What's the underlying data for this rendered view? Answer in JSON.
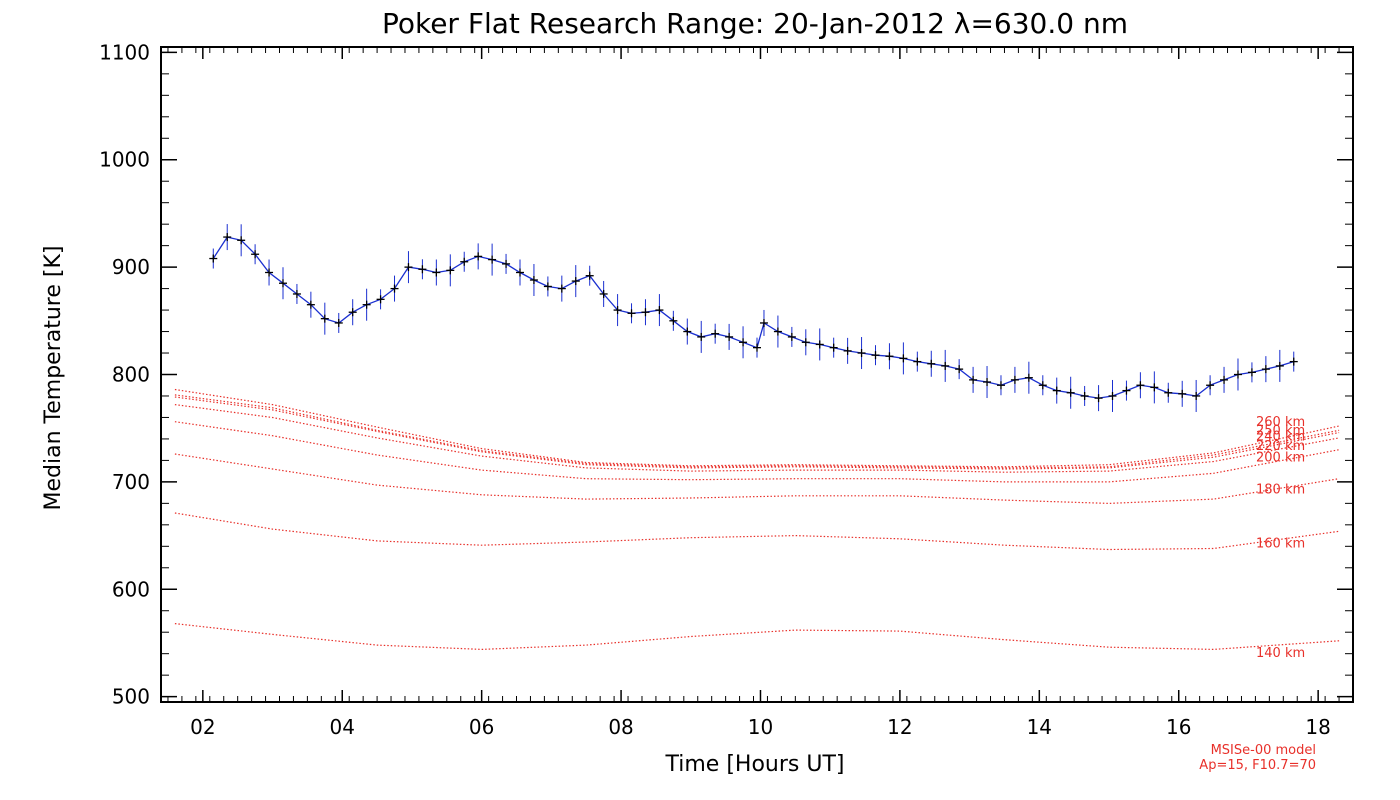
{
  "chart_data": {
    "type": "line",
    "title": "Poker Flat Research Range: 20-Jan-2012 λ=630.0 nm",
    "xlabel": "Time [Hours UT]",
    "ylabel": "Median Temperature [K]",
    "xlim": [
      1.4,
      18.5
    ],
    "ylim": [
      495,
      1105
    ],
    "x_ticks": [
      2,
      4,
      6,
      8,
      10,
      12,
      14,
      16,
      18
    ],
    "x_tick_labels": [
      "02",
      "04",
      "06",
      "08",
      "10",
      "12",
      "14",
      "16",
      "18"
    ],
    "y_ticks": [
      500,
      600,
      700,
      800,
      900,
      1000,
      1100
    ],
    "y_tick_labels": [
      "500",
      "600",
      "700",
      "800",
      "900",
      "1000",
      "1100"
    ],
    "grid": false,
    "colors": {
      "measured": "#1a2fd0",
      "median_marker": "#000000",
      "model": "#e8302a"
    },
    "measured": {
      "error_bars": true,
      "x": [
        2.15,
        2.35,
        2.55,
        2.75,
        2.95,
        3.15,
        3.35,
        3.55,
        3.75,
        3.95,
        4.15,
        4.35,
        4.55,
        4.75,
        4.95,
        5.15,
        5.35,
        5.55,
        5.75,
        5.95,
        6.15,
        6.35,
        6.55,
        6.75,
        6.95,
        7.15,
        7.35,
        7.55,
        7.75,
        7.95,
        8.15,
        8.35,
        8.55,
        8.75,
        8.95,
        9.15,
        9.35,
        9.55,
        9.75,
        9.95,
        10.05,
        10.25,
        10.45,
        10.65,
        10.85,
        11.05,
        11.25,
        11.45,
        11.65,
        11.85,
        12.05,
        12.25,
        12.45,
        12.65,
        12.85,
        13.05,
        13.25,
        13.45,
        13.65,
        13.85,
        14.05,
        14.25,
        14.45,
        14.65,
        14.85,
        15.05,
        15.25,
        15.45,
        15.65,
        15.85,
        16.05,
        16.25,
        16.45,
        16.65,
        16.85,
        17.05,
        17.25,
        17.45,
        17.65
      ],
      "y": [
        908,
        928,
        925,
        912,
        895,
        885,
        875,
        865,
        852,
        848,
        858,
        865,
        870,
        880,
        900,
        898,
        895,
        897,
        905,
        910,
        907,
        903,
        895,
        888,
        882,
        880,
        887,
        892,
        875,
        860,
        857,
        858,
        860,
        850,
        840,
        835,
        838,
        835,
        830,
        825,
        848,
        840,
        835,
        830,
        828,
        825,
        822,
        820,
        818,
        817,
        815,
        812,
        810,
        808,
        805,
        795,
        793,
        790,
        795,
        797,
        790,
        785,
        783,
        780,
        778,
        780,
        785,
        790,
        788,
        783,
        782,
        780,
        790,
        795,
        800,
        802,
        805,
        808,
        812
      ]
    },
    "series": [
      {
        "name": "140 km",
        "x": [
          1.6,
          3,
          4.5,
          6,
          7.5,
          9,
          10.5,
          12,
          13.5,
          15,
          16.5,
          18.3
        ],
        "y": [
          568,
          558,
          548,
          544,
          548,
          556,
          562,
          561,
          553,
          546,
          544,
          552
        ]
      },
      {
        "name": "160 km",
        "x": [
          1.6,
          3,
          4.5,
          6,
          7.5,
          9,
          10.5,
          12,
          13.5,
          15,
          16.5,
          18.3
        ],
        "y": [
          671,
          656,
          645,
          641,
          644,
          648,
          650,
          647,
          641,
          637,
          638,
          654
        ]
      },
      {
        "name": "180 km",
        "x": [
          1.6,
          3,
          4.5,
          6,
          7.5,
          9,
          10.5,
          12,
          13.5,
          15,
          16.5,
          18.3
        ],
        "y": [
          726,
          712,
          697,
          688,
          684,
          685,
          687,
          687,
          683,
          680,
          684,
          703
        ]
      },
      {
        "name": "200 km",
        "x": [
          1.6,
          3,
          4.5,
          6,
          7.5,
          9,
          10.5,
          12,
          13.5,
          15,
          16.5,
          18.3
        ],
        "y": [
          756,
          743,
          725,
          711,
          703,
          702,
          703,
          703,
          700,
          700,
          708,
          730
        ]
      },
      {
        "name": "220 km",
        "x": [
          1.6,
          3,
          4.5,
          6,
          7.5,
          9,
          10.5,
          12,
          13.5,
          15,
          16.5,
          18.3
        ],
        "y": [
          772,
          760,
          741,
          724,
          713,
          710,
          711,
          711,
          709,
          710,
          719,
          741
        ]
      },
      {
        "name": "240 km",
        "x": [
          1.6,
          3,
          4.5,
          6,
          7.5,
          9,
          10.5,
          12,
          13.5,
          15,
          16.5,
          18.3
        ],
        "y": [
          779,
          767,
          747,
          728,
          716,
          713,
          714,
          713,
          712,
          713,
          723,
          746
        ]
      },
      {
        "name": "250 km",
        "x": [
          1.6,
          3,
          4.5,
          6,
          7.5,
          9,
          10.5,
          12,
          13.5,
          15,
          16.5,
          18.3
        ],
        "y": [
          781,
          769,
          748,
          729,
          717,
          714,
          715,
          714,
          713,
          714,
          725,
          748
        ]
      },
      {
        "name": "260 km",
        "x": [
          1.6,
          3,
          4.5,
          6,
          7.5,
          9,
          10.5,
          12,
          13.5,
          15,
          16.5,
          18.3
        ],
        "y": [
          786,
          772,
          751,
          731,
          718,
          715,
          716,
          715,
          714,
          716,
          727,
          752
        ]
      }
    ],
    "annotations": [
      "MSISe-00 model",
      "Ap=15, F10.7=70"
    ]
  }
}
